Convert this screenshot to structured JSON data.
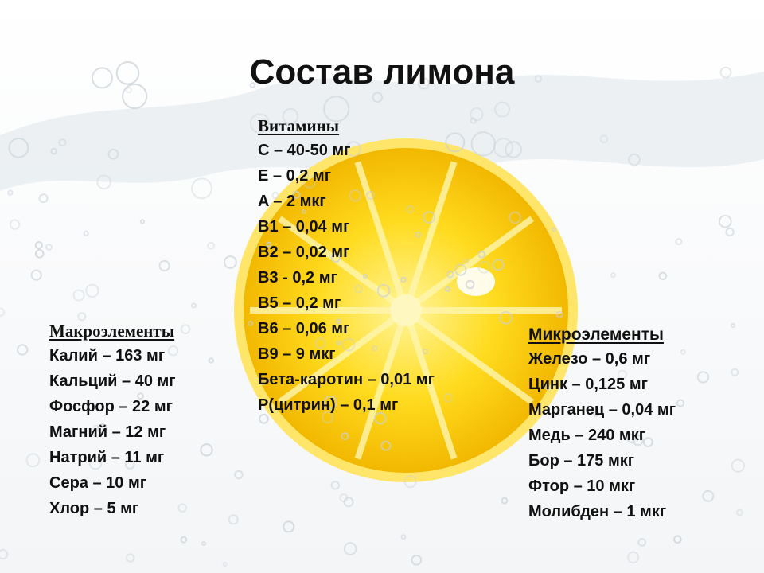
{
  "title": "Состав лимона",
  "vitamins": {
    "heading": "Витамины",
    "items": [
      "C – 40-50 мг",
      "E – 0,2 мг",
      "A – 2 мкг",
      "B1 – 0,04 мг",
      "B2 – 0,02 мг",
      "B3 - 0,2 мг",
      "B5 – 0,2 мг",
      "B6 – 0,06 мг",
      "B9 – 9 мкг",
      "Бета-каротин – 0,01 мг",
      "P(цитрин) – 0,1 мг"
    ]
  },
  "macro": {
    "heading": "Макроэлементы",
    "items": [
      "Калий – 163 мг",
      "Кальций – 40 мг",
      "Фосфор – 22 мг",
      "Магний – 12 мг",
      "Натрий – 11 мг",
      "Сера – 10 мг",
      "Хлор – 5 мг"
    ]
  },
  "micro": {
    "heading": "Микроэлементы",
    "items": [
      "Железо – 0,6 мг",
      "Цинк – 0,125 мг",
      "Марганец – 0,04 мг",
      "Медь – 240 мкг",
      "Бор – 175 мкг",
      "Фтор – 10 мкг",
      "Молибден – 1 мкг"
    ]
  },
  "colors": {
    "lemon": "#f6c800",
    "lemon_light": "#ffe24a",
    "water": "#e9edf0"
  }
}
